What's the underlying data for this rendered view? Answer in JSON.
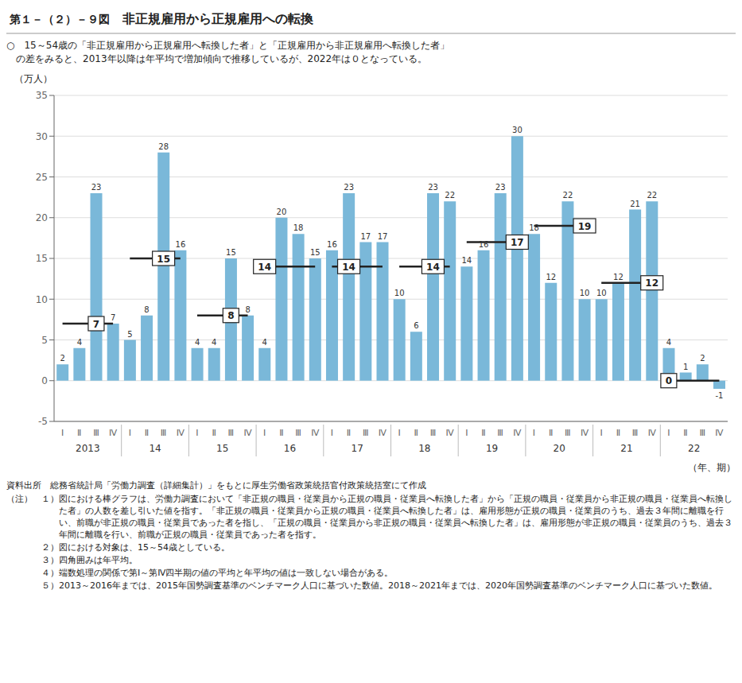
{
  "chart_data": {
    "type": "bar",
    "figure_number": "第１－（２）－９図",
    "title": "非正規雇用から正規雇用への転換",
    "subtitle": [
      "○　15～54歳の「非正規雇用から正規雇用へ転換した者」と「正規雇用から非正規雇用へ転換した者」",
      "　の差をみると、2013年以降は年平均で増加傾向で推移しているが、2022年は０となっている。"
    ],
    "ylabel": "（万人）",
    "xlabel": "（年、期）",
    "categories": [
      "Ⅰ",
      "Ⅱ",
      "Ⅲ",
      "Ⅳ",
      "Ⅰ",
      "Ⅱ",
      "Ⅲ",
      "Ⅳ",
      "Ⅰ",
      "Ⅱ",
      "Ⅲ",
      "Ⅳ",
      "Ⅰ",
      "Ⅱ",
      "Ⅲ",
      "Ⅳ",
      "Ⅰ",
      "Ⅱ",
      "Ⅲ",
      "Ⅳ",
      "Ⅰ",
      "Ⅱ",
      "Ⅲ",
      "Ⅳ",
      "Ⅰ",
      "Ⅱ",
      "Ⅲ",
      "Ⅳ",
      "Ⅰ",
      "Ⅱ",
      "Ⅲ",
      "Ⅳ",
      "Ⅰ",
      "Ⅱ",
      "Ⅲ",
      "Ⅳ",
      "Ⅰ",
      "Ⅱ",
      "Ⅲ",
      "Ⅳ"
    ],
    "category_groups": [
      "2013",
      "14",
      "15",
      "16",
      "17",
      "18",
      "19",
      "20",
      "21",
      "22"
    ],
    "values": [
      2,
      4,
      23,
      7,
      5,
      8,
      28,
      16,
      4,
      4,
      15,
      8,
      4,
      20,
      18,
      15,
      16,
      23,
      17,
      17,
      10,
      6,
      23,
      22,
      14,
      16,
      23,
      30,
      18,
      12,
      22,
      10,
      10,
      12,
      21,
      22,
      4,
      1,
      2,
      -1
    ],
    "color": "#7ab8d9",
    "data_labels": true,
    "annual_averages": [
      7,
      15,
      8,
      14,
      14,
      14,
      17,
      19,
      12,
      0
    ],
    "ylim": [
      -5,
      35
    ],
    "yticks": [
      -5,
      0,
      5,
      10,
      15,
      20,
      25,
      30,
      35
    ],
    "grid": true,
    "source": "資料出所　総務省統計局「労働力調査（詳細集計）」をもとに厚生労働省政策統括官付政策統括室にて作成",
    "note_label": "（注）",
    "notes": [
      {
        "label": "１）",
        "text": "図における棒グラフは、労働力調査において「非正規の職員・従業員から正規の職員・従業員へ転換した者」から「正規の職員・従業員から非正規の職員・従業員へ転換した者」の人数を差し引いた値を指す。「非正規の職員・従業員から正規の職員・従業員へ転換した者」は、雇用形態が正規の職員・従業員のうち、過去３年間に離職を行い、前職が非正規の職員・従業員であった者を指し、「正規の職員・従業員から非正規の職員・従業員へ転換した者」は、雇用形態が非正規の職員・従業員のうち、過去３年間に離職を行い、前職が正規の職員・従業員であった者を指す。"
      },
      {
        "label": "２）",
        "text": "図における対象は、15～54歳としている。"
      },
      {
        "label": "３）",
        "text": "四角囲みは年平均。"
      },
      {
        "label": "４）",
        "text": "端数処理の関係で第Ⅰ～第Ⅳ四半期の値の平均と年平均の値は一致しない場合がある。"
      },
      {
        "label": "５）",
        "text": "2013～2016年までは、2015年国勢調査基準のベンチマーク人口に基づいた数値。2018～2021年までは、2020年国勢調査基準のベンチマーク人口に基づいた数値。"
      }
    ]
  }
}
